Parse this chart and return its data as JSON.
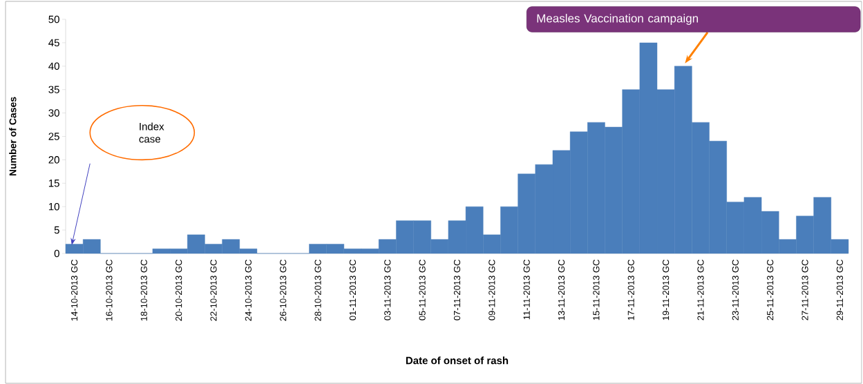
{
  "chart_data": {
    "type": "bar",
    "xlabel": "Date of onset of rash",
    "ylabel": "Number of Cases",
    "categories": [
      "14-10-2013 GC",
      null,
      "16-10-2013 GC",
      null,
      "18-10-2013 GC",
      null,
      "20-10-2013 GC",
      null,
      "22-10-2013 GC",
      null,
      "24-10-2013 GC",
      null,
      "26-10-2013 GC",
      null,
      "28-10-2013 GC",
      null,
      "01-11-2013 GC",
      null,
      "03-11-2013 GC",
      null,
      "05-11-2013 GC",
      null,
      "07-11-2013 GC",
      null,
      "09-11-2013 GC",
      null,
      "11-11-2013 GC",
      null,
      "13-11-2013 GC",
      null,
      "15-11-2013 GC",
      null,
      "17-11-2013 GC",
      null,
      "19-11-2013 GC",
      null,
      "21-11-2013 GC",
      null,
      "23-11-2013 GC",
      null,
      "25-11-2013 GC",
      null,
      "27-11-2013 GC",
      null,
      "29-11-2013 GC"
    ],
    "values": [
      2,
      3,
      0,
      0,
      0,
      1,
      1,
      4,
      2,
      3,
      1,
      0,
      0,
      0,
      2,
      2,
      1,
      1,
      3,
      7,
      7,
      3,
      7,
      10,
      4,
      10,
      17,
      19,
      22,
      26,
      28,
      27,
      35,
      45,
      35,
      40,
      28,
      24,
      11,
      12,
      9,
      3,
      8,
      12,
      3
    ],
    "color": "#4a7ebb",
    "ylim": [
      0,
      50
    ],
    "yticks": [
      0,
      5,
      10,
      15,
      20,
      25,
      30,
      35,
      40,
      45,
      50
    ],
    "annotations": [
      "Index case",
      "Measles Vaccination campaign"
    ]
  }
}
